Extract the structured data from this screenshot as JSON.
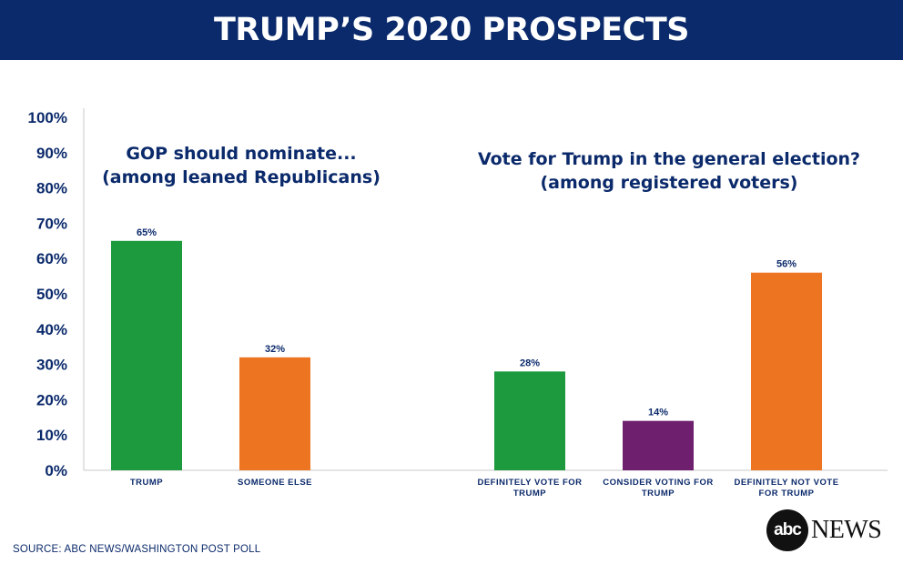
{
  "header": {
    "title": "TRUMP’S 2020 PROSPECTS"
  },
  "colors": {
    "header_bg": "#0b2a6b",
    "text": "#0b2a6b",
    "green": "#1e9a3e",
    "orange": "#ed7420",
    "purple": "#6e1f6e",
    "axis": "#c8c8c8"
  },
  "chart_data": {
    "type": "bar",
    "ylim": [
      0,
      100
    ],
    "yticks": [
      "0%",
      "10%",
      "20%",
      "30%",
      "40%",
      "50%",
      "60%",
      "70%",
      "80%",
      "90%",
      "100%"
    ],
    "panels": [
      {
        "subtitle": [
          "GOP should nominate...",
          "(among leaned Republicans)"
        ],
        "categories": [
          [
            "TRUMP"
          ],
          [
            "SOMEONE ELSE"
          ]
        ],
        "values": [
          65,
          32
        ],
        "labels": [
          "65%",
          "32%"
        ],
        "colors": [
          "green",
          "orange"
        ]
      },
      {
        "subtitle": [
          "Vote for Trump in the general election?",
          "(among registered voters)"
        ],
        "categories": [
          [
            "DEFINITELY VOTE FOR",
            "TRUMP"
          ],
          [
            "CONSIDER VOTING FOR",
            "TRUMP"
          ],
          [
            "DEFINITELY NOT VOTE",
            "FOR TRUMP"
          ]
        ],
        "values": [
          28,
          14,
          56
        ],
        "labels": [
          "28%",
          "14%",
          "56%"
        ],
        "colors": [
          "green",
          "purple",
          "orange"
        ]
      }
    ]
  },
  "footer": {
    "source": "SOURCE: ABC NEWS/WASHINGTON POST POLL"
  },
  "logo": {
    "badge": "abc",
    "news": "NEWS"
  }
}
